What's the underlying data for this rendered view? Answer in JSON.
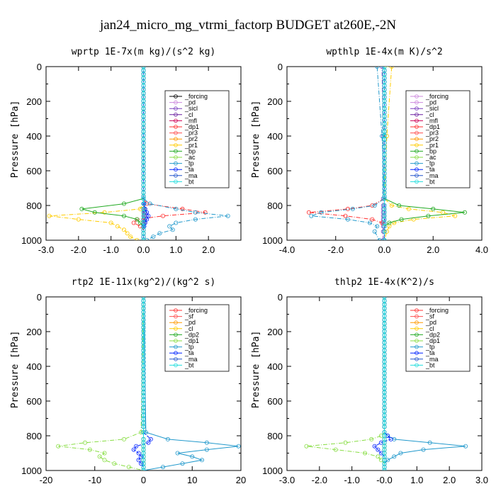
{
  "title": "jan24_micro_mg_vtrmi_factorp  BUDGET at260E,-2N",
  "chart_data": [
    {
      "type": "line",
      "title": "wprtp  1E-7x(m kg)/(s^2 kg)",
      "ylabel": "Pressure [hPa]",
      "xlim": [
        -3.0,
        3.0
      ],
      "ylim": [
        1000,
        0
      ],
      "xticks": [
        "-3.0",
        "-2.0",
        "-1.0",
        "0.0",
        "1.0",
        "2.0"
      ],
      "yticks": [
        "0",
        "200",
        "400",
        "600",
        "800",
        "1000"
      ],
      "y": [
        760,
        790,
        820,
        840,
        860,
        880,
        900,
        920,
        940,
        960,
        980,
        1000
      ],
      "series": [
        {
          "name": "_forcing",
          "color": "#000000",
          "values": [
            0,
            0,
            0,
            0,
            0,
            0,
            0,
            0,
            0,
            0,
            0,
            0
          ]
        },
        {
          "name": "_pd",
          "color": "#cc88dd",
          "values": [
            0,
            0,
            0,
            0,
            0,
            0,
            0,
            0,
            0,
            0,
            0,
            0
          ]
        },
        {
          "name": "_sicl",
          "color": "#7b3fbf",
          "values": [
            0,
            0,
            0,
            0,
            0,
            0,
            0,
            0,
            0,
            0,
            0,
            0
          ]
        },
        {
          "name": "_cl",
          "color": "#6a1fa0",
          "values": [
            0,
            0,
            0.02,
            0.03,
            0.03,
            0.02,
            0.02,
            0.01,
            0,
            0,
            0,
            0
          ]
        },
        {
          "name": "_mfl",
          "color": "#cc0055",
          "values": [
            0,
            0,
            0,
            0,
            0,
            0,
            0,
            0,
            0,
            0,
            0,
            0
          ]
        },
        {
          "name": "_dp1",
          "color": "#ff3030",
          "values": [
            0,
            0.1,
            1.2,
            1.9,
            0.6,
            -0.2,
            -0.3,
            -0.1,
            0,
            0,
            0,
            0
          ]
        },
        {
          "name": "_pr3",
          "color": "#ff5050",
          "values": [
            0,
            0,
            0,
            0,
            0,
            0,
            0,
            0,
            0,
            0,
            0,
            0
          ]
        },
        {
          "name": "_pr2",
          "color": "#ff9900",
          "values": [
            0,
            0,
            0,
            0,
            0,
            0,
            0,
            0,
            0,
            0,
            0,
            0
          ]
        },
        {
          "name": "_pr1",
          "color": "#ffcc00",
          "values": [
            0,
            0,
            -0.1,
            -1.2,
            -2.9,
            -2.0,
            -1.0,
            -0.8,
            -0.6,
            -0.5,
            -0.4,
            -0.2
          ]
        },
        {
          "name": "_bp",
          "color": "#22aa22",
          "values": [
            0,
            -0.6,
            -1.9,
            -1.5,
            -0.6,
            -0.2,
            -0.1,
            0,
            0,
            0,
            0,
            0
          ]
        },
        {
          "name": "_ac",
          "color": "#88dd44",
          "values": [
            0,
            0,
            0,
            0,
            0,
            0,
            0,
            0,
            0,
            0,
            0,
            0
          ]
        },
        {
          "name": "_tp",
          "color": "#2299cc",
          "values": [
            0,
            0.2,
            1.0,
            1.6,
            2.6,
            1.6,
            1.0,
            0.8,
            0.9,
            0.5,
            0.3,
            0.1
          ]
        },
        {
          "name": "_ta",
          "color": "#0022ff",
          "values": [
            0,
            0.02,
            0.05,
            0.1,
            0.15,
            0.1,
            0.05,
            0.02,
            0,
            0,
            0,
            0
          ]
        },
        {
          "name": "_ma",
          "color": "#2255cc",
          "values": [
            0,
            0,
            0,
            0,
            0,
            0,
            0,
            0,
            0,
            0,
            0,
            0
          ]
        },
        {
          "name": "_bt",
          "color": "#22dddd",
          "values": [
            0,
            0,
            0,
            0,
            0,
            0,
            0,
            0,
            0,
            0,
            0,
            0
          ]
        }
      ]
    },
    {
      "type": "line",
      "title": "wpthlp  1E-4x(m K)/s^2",
      "ylabel": "Pressure [hPa]",
      "xlim": [
        -4.0,
        4.0
      ],
      "ylim": [
        1000,
        0
      ],
      "xticks": [
        "-4.0",
        "-2.0",
        "0.0",
        "2.0",
        "4.0"
      ],
      "yticks": [
        "0",
        "200",
        "400",
        "600",
        "800",
        "1000"
      ],
      "y": [
        0,
        400,
        760,
        800,
        820,
        840,
        860,
        880,
        900,
        920,
        950,
        1000
      ],
      "series": [
        {
          "name": "_forcing",
          "color": "#cc88dd",
          "values": [
            0,
            0,
            0,
            0,
            0,
            0,
            0,
            0,
            0,
            0,
            0,
            0
          ]
        },
        {
          "name": "_pd",
          "color": "#cc88dd",
          "values": [
            0,
            0,
            0,
            0,
            0,
            0,
            0,
            0,
            0,
            0,
            0,
            0
          ]
        },
        {
          "name": "_sicl",
          "color": "#7b3fbf",
          "values": [
            -0.1,
            -0.05,
            -0.05,
            -0.05,
            -0.05,
            -0.05,
            -0.05,
            -0.05,
            -0.05,
            -0.05,
            -0.05,
            -0.05
          ]
        },
        {
          "name": "_cl",
          "color": "#6a1fa0",
          "values": [
            0,
            0,
            0,
            0,
            0,
            0,
            0,
            0,
            0,
            0,
            0,
            0
          ]
        },
        {
          "name": "_mfl",
          "color": "#cc0055",
          "values": [
            0,
            0,
            0,
            0,
            0,
            0,
            0,
            0,
            0,
            0,
            0,
            0
          ]
        },
        {
          "name": "_dp1",
          "color": "#ff3030",
          "values": [
            0,
            0,
            0,
            -0.5,
            -1.5,
            -3.1,
            -1.6,
            -0.5,
            -0.1,
            0,
            0,
            0
          ]
        },
        {
          "name": "_pr3",
          "color": "#ff5050",
          "values": [
            0,
            0,
            0,
            0,
            0,
            0,
            0,
            0,
            0,
            0,
            0,
            0
          ]
        },
        {
          "name": "_pr2",
          "color": "#ff9900",
          "values": [
            0,
            0,
            0,
            0,
            0,
            0,
            0,
            0,
            0,
            0,
            0,
            0
          ]
        },
        {
          "name": "_pr1",
          "color": "#ffcc00",
          "values": [
            0.3,
            0.1,
            0,
            0.3,
            1.0,
            2.4,
            2.9,
            1.2,
            0.4,
            0.2,
            0.1,
            0
          ]
        },
        {
          "name": "_bp",
          "color": "#22aa22",
          "values": [
            0,
            0,
            0,
            0.6,
            2.0,
            3.3,
            1.8,
            0.7,
            0.2,
            0,
            0,
            0
          ]
        },
        {
          "name": "_ac",
          "color": "#88dd44",
          "values": [
            0,
            0,
            0,
            0,
            0,
            0,
            0,
            0,
            0,
            0,
            0,
            0
          ]
        },
        {
          "name": "_tp",
          "color": "#2299cc",
          "values": [
            -0.3,
            -0.1,
            0,
            -0.4,
            -1.3,
            -2.6,
            -3.0,
            -1.5,
            -0.6,
            -0.3,
            -0.4,
            -0.2
          ]
        },
        {
          "name": "_ta",
          "color": "#0022ff",
          "values": [
            0,
            0,
            0,
            0,
            0,
            0,
            0,
            0,
            0,
            0,
            0,
            0
          ]
        },
        {
          "name": "_ma",
          "color": "#2255cc",
          "values": [
            0,
            0,
            0,
            0,
            0,
            0,
            0,
            0,
            0,
            0,
            0,
            0
          ]
        },
        {
          "name": "_bt",
          "color": "#22dddd",
          "values": [
            0,
            0,
            0,
            0,
            0,
            0,
            0,
            0,
            0,
            0,
            0,
            0
          ]
        }
      ]
    },
    {
      "type": "line",
      "title": "rtp2  1E-11x(kg^2)/(kg^2 s)",
      "ylabel": "Pressure [hPa]",
      "xlim": [
        -20,
        20
      ],
      "ylim": [
        1000,
        0
      ],
      "xticks": [
        "-20",
        "-10",
        "0",
        "10",
        "20"
      ],
      "yticks": [
        "0",
        "200",
        "400",
        "600",
        "800",
        "1000"
      ],
      "y": [
        780,
        820,
        840,
        860,
        880,
        900,
        920,
        940,
        960,
        980,
        1000
      ],
      "series": [
        {
          "name": "_forcing",
          "color": "#ff3030",
          "values": [
            0,
            0,
            0,
            0,
            0,
            0,
            0,
            0,
            0,
            0,
            0
          ]
        },
        {
          "name": "_sf",
          "color": "#ff5050",
          "values": [
            0,
            0,
            0,
            0,
            0,
            0,
            0,
            0,
            0,
            0,
            0
          ]
        },
        {
          "name": "_pd",
          "color": "#ff9900",
          "values": [
            0,
            0,
            0,
            0,
            0,
            0,
            0,
            0,
            0,
            0,
            0
          ]
        },
        {
          "name": "_cl",
          "color": "#ffcc00",
          "values": [
            0,
            0,
            0,
            0,
            0,
            0,
            0,
            0,
            0,
            0,
            0
          ]
        },
        {
          "name": "_dp2",
          "color": "#22aa22",
          "values": [
            0,
            0,
            0,
            0,
            0,
            0,
            0,
            0,
            0,
            0,
            0
          ]
        },
        {
          "name": "_dp1",
          "color": "#88dd44",
          "values": [
            -0.5,
            -4,
            -12,
            -17.5,
            -11,
            -8,
            -9,
            -8,
            -6,
            -3,
            0
          ]
        },
        {
          "name": "_tp",
          "color": "#2299cc",
          "values": [
            0.5,
            5,
            13,
            19.5,
            13,
            7,
            10,
            12,
            8,
            4,
            0
          ]
        },
        {
          "name": "_ta",
          "color": "#0022ff",
          "values": [
            0,
            1.5,
            1,
            -1.5,
            -2,
            -1,
            -0.5,
            -1,
            -0.5,
            0,
            0
          ]
        },
        {
          "name": "_ma",
          "color": "#2255cc",
          "values": [
            0,
            0,
            0,
            0,
            0,
            0,
            0,
            0,
            0,
            0,
            0
          ]
        },
        {
          "name": "_bt",
          "color": "#22dddd",
          "values": [
            0,
            0,
            0,
            0,
            0,
            0,
            0,
            0,
            0,
            0,
            0
          ]
        }
      ]
    },
    {
      "type": "line",
      "title": "thlp2  1E-4x(K^2)/s",
      "ylabel": "Pressure [hPa]",
      "xlim": [
        -3.0,
        3.0
      ],
      "ylim": [
        1000,
        0
      ],
      "xticks": [
        "-3.0",
        "-2.0",
        "-1.0",
        "-0.0",
        "1.0",
        "2.0",
        "3.0"
      ],
      "yticks": [
        "0",
        "200",
        "400",
        "600",
        "800",
        "1000"
      ],
      "y": [
        780,
        800,
        820,
        840,
        860,
        880,
        900,
        920,
        940,
        960,
        980,
        1000
      ],
      "series": [
        {
          "name": "_forcing",
          "color": "#ff3030",
          "values": [
            0,
            0,
            0,
            0,
            0,
            0,
            0,
            0,
            0,
            0,
            0,
            0
          ]
        },
        {
          "name": "_sf",
          "color": "#ff5050",
          "values": [
            0,
            0,
            0,
            0,
            0,
            0,
            0,
            0,
            0,
            0,
            0,
            0
          ]
        },
        {
          "name": "_pd",
          "color": "#ff9900",
          "values": [
            0,
            0,
            0,
            0,
            0,
            0,
            0,
            0,
            0,
            0,
            0,
            0
          ]
        },
        {
          "name": "_cl",
          "color": "#ffcc00",
          "values": [
            0,
            0,
            0,
            0,
            0,
            0,
            0,
            0,
            0,
            0,
            0,
            0
          ]
        },
        {
          "name": "_dp2",
          "color": "#22aa22",
          "values": [
            0,
            0,
            0,
            0,
            0,
            0,
            0,
            0,
            0,
            0,
            0,
            0
          ]
        },
        {
          "name": "_dp1",
          "color": "#88dd44",
          "values": [
            0,
            -0.1,
            -0.4,
            -1.2,
            -2.4,
            -1.5,
            -0.6,
            -0.2,
            -0.1,
            0,
            0,
            0
          ]
        },
        {
          "name": "_tp",
          "color": "#2299cc",
          "values": [
            0,
            0.1,
            0.3,
            1.4,
            2.5,
            1.2,
            0.5,
            0.3,
            0.1,
            0,
            0,
            0
          ]
        },
        {
          "name": "_ta",
          "color": "#0022ff",
          "values": [
            0,
            0.1,
            0.2,
            -0.1,
            -0.3,
            -0.2,
            -0.1,
            0,
            0,
            0,
            0,
            0
          ]
        },
        {
          "name": "_ma",
          "color": "#2255cc",
          "values": [
            0,
            0,
            0,
            0,
            0,
            0,
            0,
            0,
            0,
            0,
            0,
            0
          ]
        },
        {
          "name": "_bt",
          "color": "#22dddd",
          "values": [
            0,
            0,
            0,
            0,
            0,
            0,
            0,
            0,
            0,
            0,
            0,
            0
          ]
        }
      ]
    }
  ]
}
